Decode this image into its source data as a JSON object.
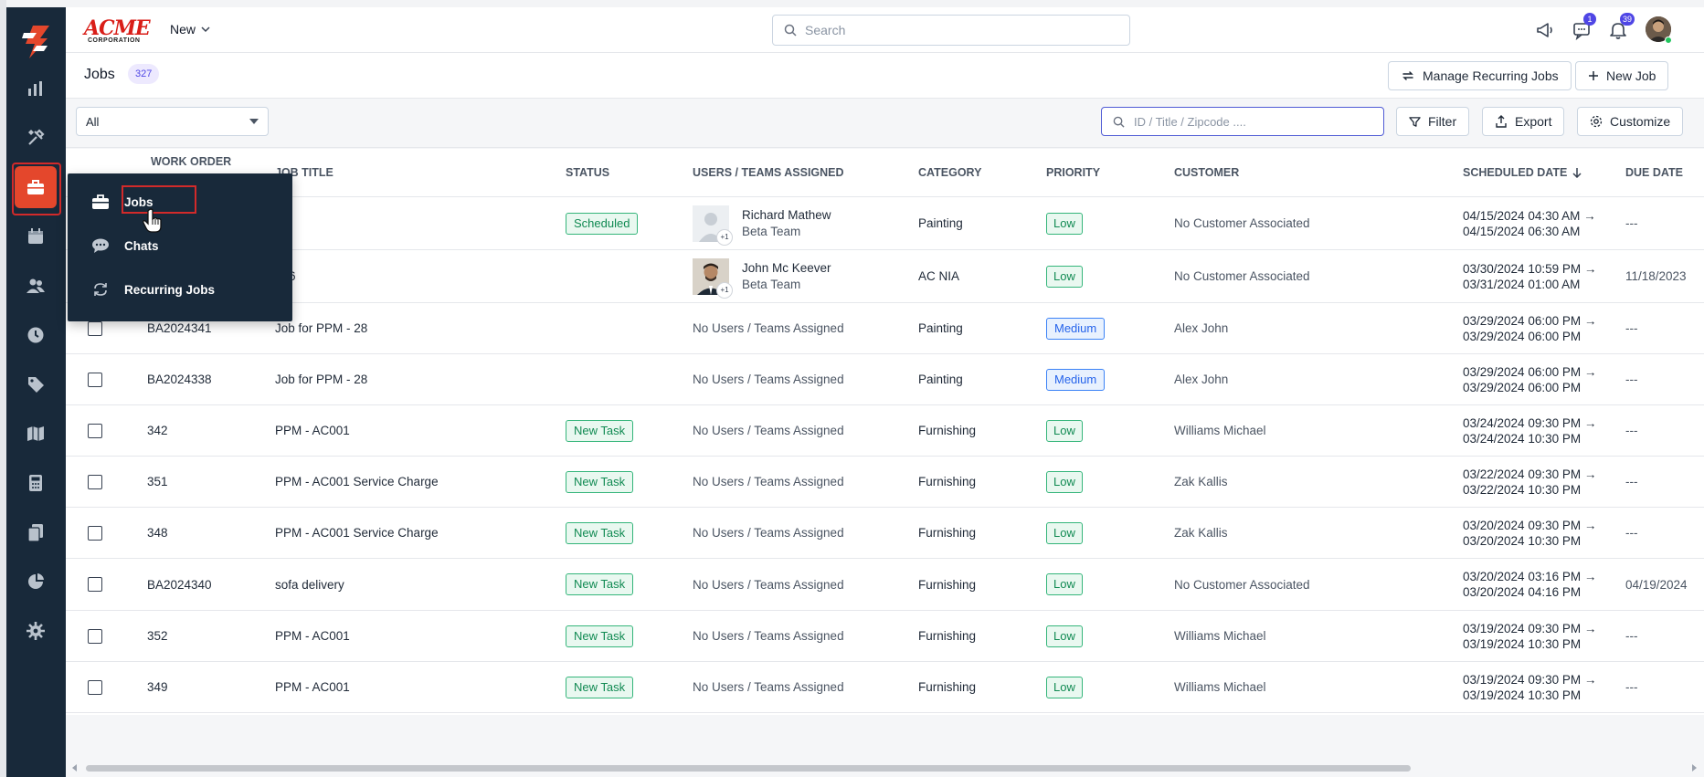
{
  "header": {
    "brand_name": "ACME",
    "brand_sub": "CORPORATION",
    "new_label": "New",
    "search_placeholder": "Search",
    "messages_badge": "1",
    "notifications_badge": "39"
  },
  "sidebar": {
    "items": [
      {
        "icon": "reports-icon"
      },
      {
        "icon": "tools-icon"
      },
      {
        "icon": "briefcase-icon",
        "active": true
      },
      {
        "icon": "calendar-icon"
      },
      {
        "icon": "users-icon"
      },
      {
        "icon": "clock-icon"
      },
      {
        "icon": "tag-icon"
      },
      {
        "icon": "map-icon"
      },
      {
        "icon": "calculator-icon"
      },
      {
        "icon": "documents-icon"
      },
      {
        "icon": "pie-chart-icon"
      },
      {
        "icon": "settings-icon"
      }
    ],
    "accent": "#e4472c",
    "background": "#18293a"
  },
  "flyout": {
    "items": [
      {
        "label": "Jobs",
        "icon": "briefcase-icon"
      },
      {
        "label": "Chats",
        "icon": "chat-icon"
      },
      {
        "label": "Recurring Jobs",
        "icon": "recurring-icon"
      }
    ]
  },
  "page": {
    "title": "Jobs",
    "count": "327",
    "manage_recurring_label": "Manage Recurring Jobs",
    "new_job_label": "New Job"
  },
  "toolbar": {
    "view_selected": "All",
    "filter_placeholder": "ID / Title / Zipcode ....",
    "filter_label": "Filter",
    "export_label": "Export",
    "customize_label": "Customize"
  },
  "table": {
    "columns": {
      "work_order": "WORK ORDER",
      "job_title": "JOB TITLE",
      "status": "STATUS",
      "users": "USERS / TEAMS ASSIGNED",
      "category": "CATEGORY",
      "priority": "PRIORITY",
      "customer": "CUSTOMER",
      "scheduled": "SCHEDULED DATE",
      "due": "DUE DATE"
    },
    "rows": [
      {
        "work_order": "",
        "title": "",
        "status": "Scheduled",
        "user_name": "Richard Mathew",
        "user_team": "Beta Team",
        "user_more": "+1",
        "category": "Painting",
        "priority": "Low",
        "customer": "No Customer Associated",
        "sched_start": "04/15/2024 04:30 AM →",
        "sched_end": "04/15/2024 06:30 AM",
        "due": "---"
      },
      {
        "work_order": "",
        "title": "556",
        "status": "",
        "user_name": "John Mc Keever",
        "user_team": "Beta Team",
        "user_more": "+1",
        "category": "AC NIA",
        "priority": "Low",
        "customer": "No Customer Associated",
        "sched_start": "03/30/2024 10:59 PM →",
        "sched_end": "03/31/2024 01:00 AM",
        "due": "11/18/2023"
      },
      {
        "work_order": "BA2024341",
        "title": "Job for PPM - 28",
        "status": "",
        "users_text": "No Users / Teams Assigned",
        "category": "Painting",
        "priority": "Medium",
        "customer": "Alex John",
        "sched_start": "03/29/2024 06:00 PM →",
        "sched_end": "03/29/2024 06:00 PM",
        "due": "---"
      },
      {
        "work_order": "BA2024338",
        "title": "Job for PPM - 28",
        "status": "",
        "users_text": "No Users / Teams Assigned",
        "category": "Painting",
        "priority": "Medium",
        "customer": "Alex John",
        "sched_start": "03/29/2024 06:00 PM →",
        "sched_end": "03/29/2024 06:00 PM",
        "due": "---"
      },
      {
        "work_order": "342",
        "title": "PPM - AC001",
        "status": "New Task",
        "users_text": "No Users / Teams Assigned",
        "category": "Furnishing",
        "priority": "Low",
        "customer": "Williams Michael",
        "sched_start": "03/24/2024 09:30 PM →",
        "sched_end": "03/24/2024 10:30 PM",
        "due": "---"
      },
      {
        "work_order": "351",
        "title": "PPM - AC001 Service Charge",
        "status": "New Task",
        "users_text": "No Users / Teams Assigned",
        "category": "Furnishing",
        "priority": "Low",
        "customer": "Zak Kallis",
        "sched_start": "03/22/2024 09:30 PM →",
        "sched_end": "03/22/2024 10:30 PM",
        "due": "---"
      },
      {
        "work_order": "348",
        "title": "PPM - AC001 Service Charge",
        "status": "New Task",
        "users_text": "No Users / Teams Assigned",
        "category": "Furnishing",
        "priority": "Low",
        "customer": "Zak Kallis",
        "sched_start": "03/20/2024 09:30 PM →",
        "sched_end": "03/20/2024 10:30 PM",
        "due": "---"
      },
      {
        "work_order": "BA2024340",
        "title": "sofa delivery",
        "status": "New Task",
        "users_text": "No Users / Teams Assigned",
        "category": "Furnishing",
        "priority": "Low",
        "customer": "No Customer Associated",
        "sched_start": "03/20/2024 03:16 PM →",
        "sched_end": "03/20/2024 04:16 PM",
        "due": "04/19/2024"
      },
      {
        "work_order": "352",
        "title": "PPM - AC001",
        "status": "New Task",
        "users_text": "No Users / Teams Assigned",
        "category": "Furnishing",
        "priority": "Low",
        "customer": "Williams Michael",
        "sched_start": "03/19/2024 09:30 PM →",
        "sched_end": "03/19/2024 10:30 PM",
        "due": "---"
      },
      {
        "work_order": "349",
        "title": "PPM - AC001",
        "status": "New Task",
        "users_text": "No Users / Teams Assigned",
        "category": "Furnishing",
        "priority": "Low",
        "customer": "Williams Michael",
        "sched_start": "03/19/2024 09:30 PM →",
        "sched_end": "03/19/2024 10:30 PM",
        "due": "---"
      }
    ]
  }
}
